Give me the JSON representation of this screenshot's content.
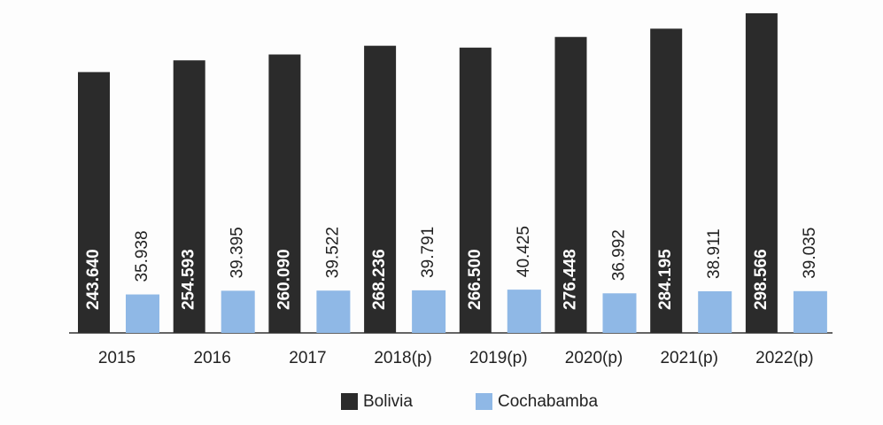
{
  "chart_data": {
    "type": "bar",
    "categories": [
      "2015",
      "2016",
      "2017",
      "2018(p)",
      "2019(p)",
      "2020(p)",
      "2021(p)",
      "2022(p)"
    ],
    "series": [
      {
        "name": "Bolivia",
        "color": "#2b2b2b",
        "values": [
          243640,
          254593,
          260090,
          268236,
          266500,
          276448,
          284195,
          298566
        ],
        "value_labels": [
          "243.640",
          "254.593",
          "260.090",
          "268.236",
          "266.500",
          "276.448",
          "284.195",
          "298.566"
        ]
      },
      {
        "name": "Cochabamba",
        "color": "#8fb8e6",
        "values": [
          35938,
          39395,
          39522,
          39791,
          40425,
          36992,
          38911,
          39035
        ],
        "value_labels": [
          "35.938",
          "39.395",
          "39.522",
          "39.791",
          "40.425",
          "36.992",
          "38.911",
          "39.035"
        ]
      }
    ],
    "legend": "bottom"
  }
}
